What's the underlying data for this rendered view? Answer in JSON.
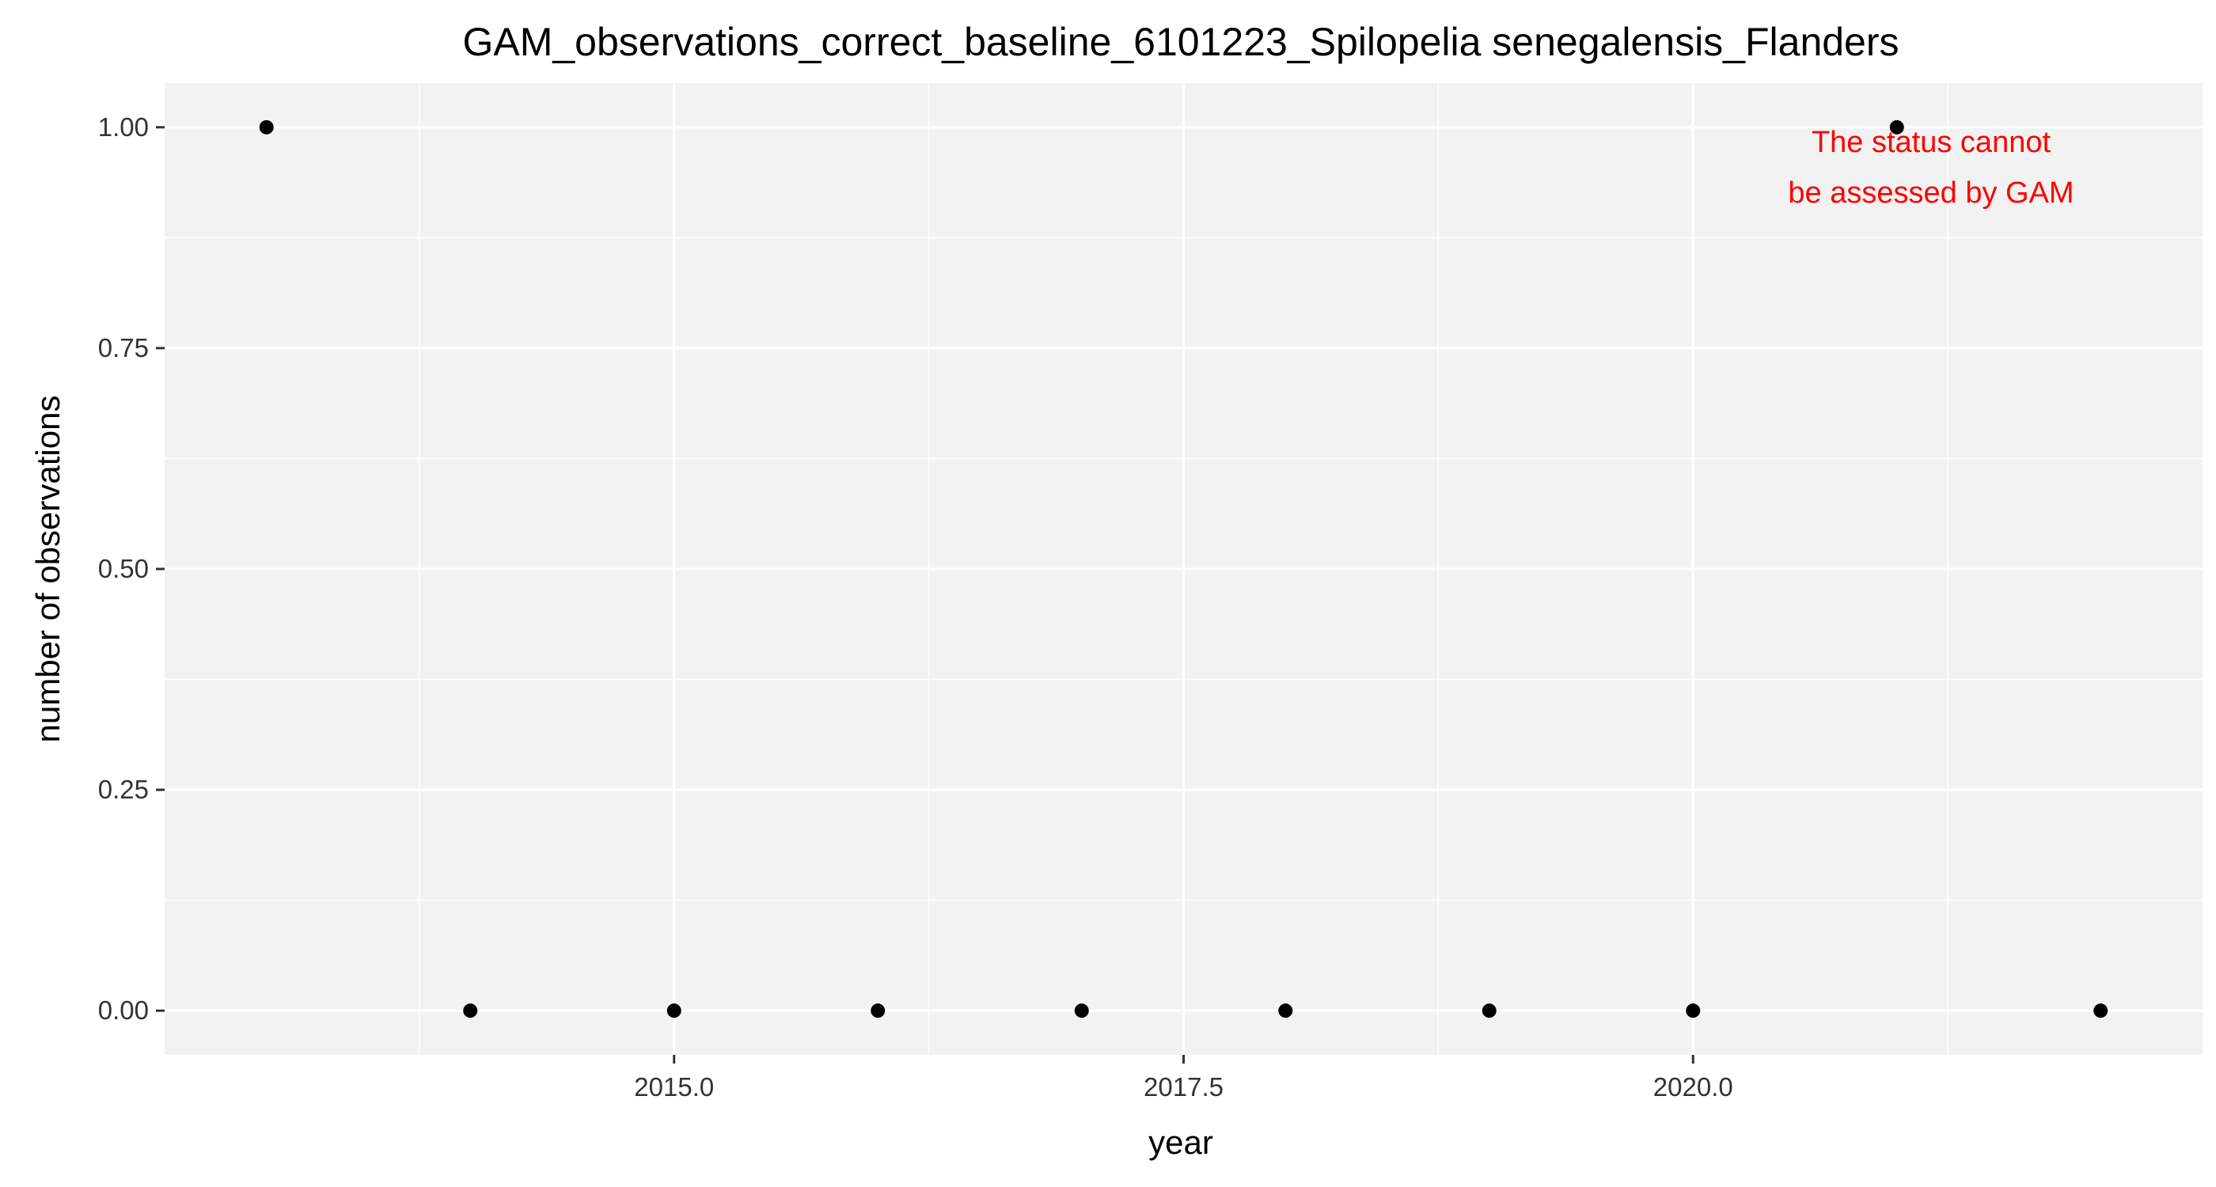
{
  "chart_data": {
    "type": "scatter",
    "title": "GAM_observations_correct_baseline_6101223_Spilopelia senegalensis_Flanders",
    "xlabel": "year",
    "ylabel": "number of observations",
    "x": [
      2013,
      2014,
      2015,
      2016,
      2017,
      2018,
      2019,
      2020,
      2021,
      2022
    ],
    "y": [
      1,
      0,
      0,
      0,
      0,
      0,
      0,
      0,
      1,
      0
    ],
    "xlim": [
      2012.5,
      2022.5
    ],
    "ylim": [
      -0.05,
      1.05
    ],
    "x_ticks": [
      2015.0,
      2017.5,
      2020.0
    ],
    "x_tick_labels": [
      "2015.0",
      "2017.5",
      "2020.0"
    ],
    "y_ticks": [
      0.0,
      0.25,
      0.5,
      0.75,
      1.0
    ],
    "y_tick_labels": [
      "0.00",
      "0.25",
      "0.50",
      "0.75",
      "1.00"
    ],
    "grid": true,
    "annotation": {
      "lines": [
        "The status cannot",
        "be assessed by GAM"
      ],
      "color": "#ff0000"
    },
    "colors": {
      "panel_background": "#f2f2f2",
      "grid_line": "#ffffff",
      "point": "#000000"
    }
  }
}
